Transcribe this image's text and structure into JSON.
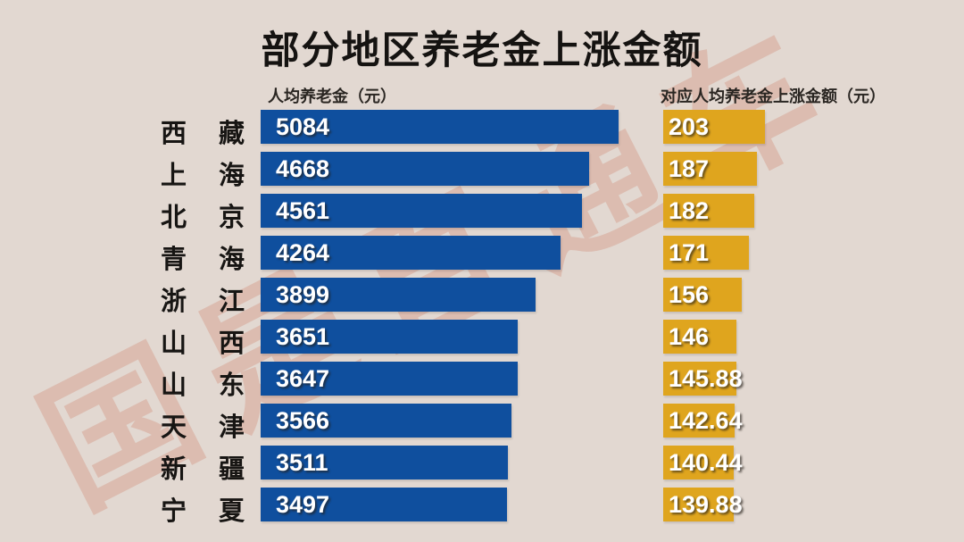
{
  "title": "部分地区养老金上涨金额",
  "watermark": "国是直通车",
  "columns": {
    "left_header": "人均养老金（元）",
    "right_header": "对应人均养老金上涨金额（元）"
  },
  "colors": {
    "background": "#E2D8D1",
    "bar_pension": "#0F4F9E",
    "bar_increase": "#DFA51E",
    "watermark": "#CD7258",
    "value_text": "#FFFFFF",
    "label_text": "#171513"
  },
  "chart_data": {
    "type": "bar",
    "orientation": "horizontal",
    "title": "部分地区养老金上涨金额",
    "categories": [
      "西藏",
      "上海",
      "北京",
      "青海",
      "浙江",
      "山西",
      "山东",
      "天津",
      "新疆",
      "宁夏"
    ],
    "series": [
      {
        "name": "人均养老金（元）",
        "values": [
          5084,
          4668,
          4561,
          4264,
          3899,
          3651,
          3647,
          3566,
          3511,
          3497
        ]
      },
      {
        "name": "对应人均养老金上涨金额（元）",
        "values": [
          203,
          187,
          182,
          171,
          156,
          146,
          145.88,
          142.64,
          140.44,
          139.88
        ]
      }
    ],
    "value_labels_shown": true,
    "grid": false,
    "axes_shown": false
  },
  "rows": [
    {
      "region": "西藏",
      "pension": "5084",
      "increase": "203"
    },
    {
      "region": "上海",
      "pension": "4668",
      "increase": "187"
    },
    {
      "region": "北京",
      "pension": "4561",
      "increase": "182"
    },
    {
      "region": "青海",
      "pension": "4264",
      "increase": "171"
    },
    {
      "region": "浙江",
      "pension": "3899",
      "increase": "156"
    },
    {
      "region": "山西",
      "pension": "3651",
      "increase": "146"
    },
    {
      "region": "山东",
      "pension": "3647",
      "increase": "145.88"
    },
    {
      "region": "天津",
      "pension": "3566",
      "increase": "142.64"
    },
    {
      "region": "新疆",
      "pension": "3511",
      "increase": "140.44"
    },
    {
      "region": "宁夏",
      "pension": "3497",
      "increase": "139.88"
    }
  ]
}
